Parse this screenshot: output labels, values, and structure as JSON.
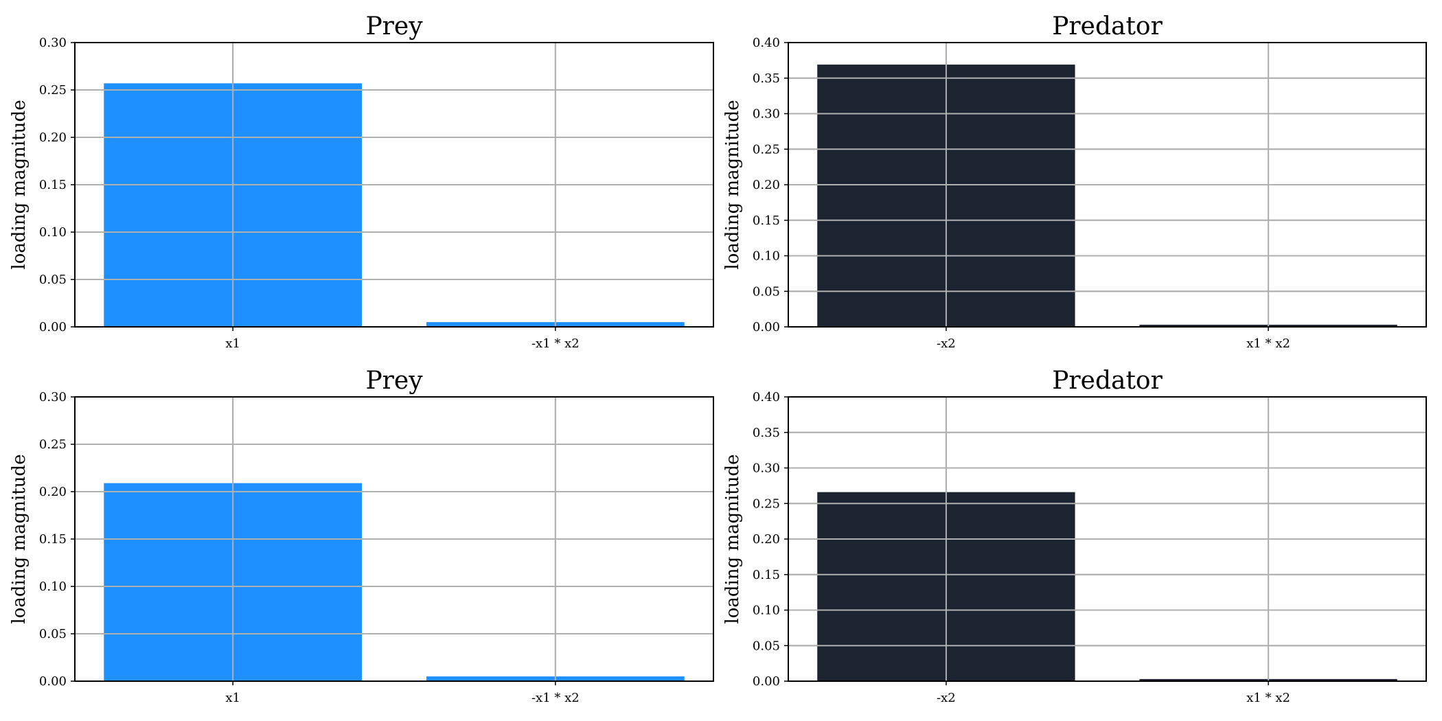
{
  "chart_data": [
    {
      "type": "bar",
      "title": "Prey",
      "xlabel": "",
      "ylabel": "loading magnitude",
      "categories": [
        "x1",
        "-x1 * x2"
      ],
      "values": [
        0.257,
        0.005
      ],
      "ylim": [
        0,
        0.3
      ],
      "yticks": [
        "0.00",
        "0.05",
        "0.10",
        "0.15",
        "0.20",
        "0.25",
        "0.30"
      ],
      "color": "#1e90ff",
      "grid": true
    },
    {
      "type": "bar",
      "title": "Predator",
      "xlabel": "",
      "ylabel": "loading magnitude",
      "categories": [
        "-x2",
        "x1 * x2"
      ],
      "values": [
        0.369,
        0.003
      ],
      "ylim": [
        0,
        0.4
      ],
      "yticks": [
        "0.00",
        "0.05",
        "0.10",
        "0.15",
        "0.20",
        "0.25",
        "0.30",
        "0.35",
        "0.40"
      ],
      "color": "#1c2331",
      "grid": true
    },
    {
      "type": "bar",
      "title": "Prey",
      "xlabel": "",
      "ylabel": "loading magnitude",
      "categories": [
        "x1",
        "-x1 * x2"
      ],
      "values": [
        0.209,
        0.005
      ],
      "ylim": [
        0,
        0.3
      ],
      "yticks": [
        "0.00",
        "0.05",
        "0.10",
        "0.15",
        "0.20",
        "0.25",
        "0.30"
      ],
      "color": "#1e90ff",
      "grid": true
    },
    {
      "type": "bar",
      "title": "Predator",
      "xlabel": "",
      "ylabel": "loading magnitude",
      "categories": [
        "-x2",
        "x1 * x2"
      ],
      "values": [
        0.266,
        0.003
      ],
      "ylim": [
        0,
        0.4
      ],
      "yticks": [
        "0.00",
        "0.05",
        "0.10",
        "0.15",
        "0.20",
        "0.25",
        "0.30",
        "0.35",
        "0.40"
      ],
      "color": "#1c2331",
      "grid": true
    }
  ]
}
